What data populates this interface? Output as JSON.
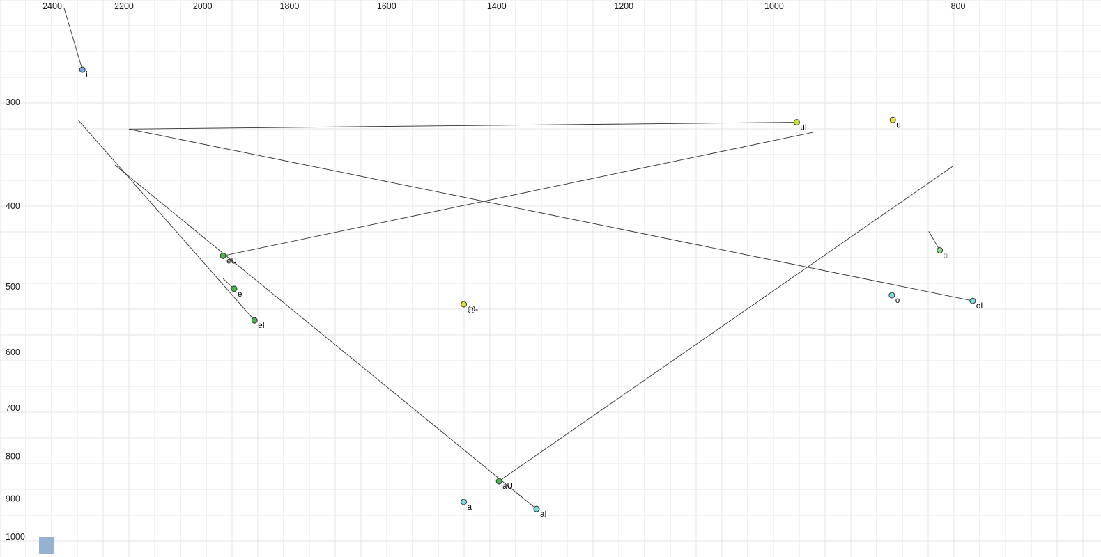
{
  "chart_data": {
    "type": "scatter",
    "title": "",
    "description": "Vowel formant plot (F2 horizontal, reversed; F1 vertical, increasing downward; log-log scaling) with diphthong glide trajectories",
    "x_axis": {
      "label": "",
      "ticks": [
        2400,
        2200,
        2000,
        1800,
        1600,
        1400,
        1200,
        1000,
        800
      ],
      "range": [
        2400,
        800
      ],
      "scale": "log",
      "reversed": true,
      "position": "top"
    },
    "y_axis": {
      "label": "",
      "ticks": [
        300,
        400,
        500,
        600,
        700,
        800,
        900,
        1000
      ],
      "range": [
        300,
        1000
      ],
      "scale": "log",
      "reversed": false,
      "position": "left"
    },
    "grid": {
      "shown": true
    },
    "points": [
      {
        "label": "i",
        "f2": 2314,
        "f1": 274,
        "color": "#7aa7e8",
        "label_color": "#000000"
      },
      {
        "label": "uI",
        "f2": 973,
        "f1": 317,
        "color": "#c6e234",
        "label_color": "#000000"
      },
      {
        "label": "u",
        "f2": 866,
        "f1": 315,
        "color": "#e8e838",
        "label_color": "#000000"
      },
      {
        "label": "eU",
        "f2": 1951,
        "f1": 459,
        "color": "#46b946",
        "label_color": "#000000"
      },
      {
        "label": "e",
        "f2": 1925,
        "f1": 503,
        "color": "#46b946",
        "label_color": "#000000"
      },
      {
        "label": "eI",
        "f2": 1878,
        "f1": 549,
        "color": "#46b946",
        "label_color": "#000000"
      },
      {
        "label": "@-",
        "f2": 1457,
        "f1": 525,
        "color": "#e0e030",
        "label_color": "#000000"
      },
      {
        "label": "o",
        "f2": 818,
        "f1": 452,
        "color": "#8ad98a",
        "label_color": "#999999"
      },
      {
        "label": "o",
        "f2": 867,
        "f1": 512,
        "color": "#7adde2",
        "label_color": "#000000"
      },
      {
        "label": "oI",
        "f2": 786,
        "f1": 520,
        "color": "#7adde2",
        "label_color": "#000000"
      },
      {
        "label": "aU",
        "f2": 1396,
        "f1": 857,
        "color": "#46b946",
        "label_color": "#000000"
      },
      {
        "label": "a",
        "f2": 1457,
        "f1": 908,
        "color": "#7adde2",
        "label_color": "#000000"
      },
      {
        "label": "aI",
        "f2": 1334,
        "f1": 926,
        "color": "#7adde2",
        "label_color": "#000000"
      }
    ],
    "segments": [
      {
        "name": "i-tail",
        "from": {
          "f2": 2366,
          "f1": 231
        },
        "to": {
          "f2": 2314,
          "f1": 274
        }
      },
      {
        "name": "uI-glide",
        "from": {
          "f2": 973,
          "f1": 317
        },
        "to": {
          "f2": 2187,
          "f1": 323
        }
      },
      {
        "name": "eU-glide",
        "from": {
          "f2": 1951,
          "f1": 459
        },
        "to": {
          "f2": 954,
          "f1": 326
        }
      },
      {
        "name": "e-tail",
        "from": {
          "f2": 1951,
          "f1": 489
        },
        "to": {
          "f2": 1925,
          "f1": 503
        }
      },
      {
        "name": "eI-glide",
        "from": {
          "f2": 1878,
          "f1": 549
        },
        "to": {
          "f2": 2326,
          "f1": 315
        }
      },
      {
        "name": "oI-glide",
        "from": {
          "f2": 786,
          "f1": 520
        },
        "to": {
          "f2": 2187,
          "f1": 323
        }
      },
      {
        "name": "o-tail",
        "from": {
          "f2": 829,
          "f1": 429
        },
        "to": {
          "f2": 818,
          "f1": 452
        }
      },
      {
        "name": "aU-glide",
        "from": {
          "f2": 1396,
          "f1": 857
        },
        "to": {
          "f2": 805,
          "f1": 358
        }
      },
      {
        "name": "aI-glide",
        "from": {
          "f2": 1334,
          "f1": 926
        },
        "to": {
          "f2": 2224,
          "f1": 357
        }
      }
    ],
    "colors": {
      "background": "#ffffff",
      "grid": "#e5e5e5",
      "trajectory_line": "#2f2f2f",
      "point_outline": "#333333",
      "axis_text": "#1a1a1a"
    }
  },
  "corner_marker": {
    "color": "#97b1d2"
  }
}
